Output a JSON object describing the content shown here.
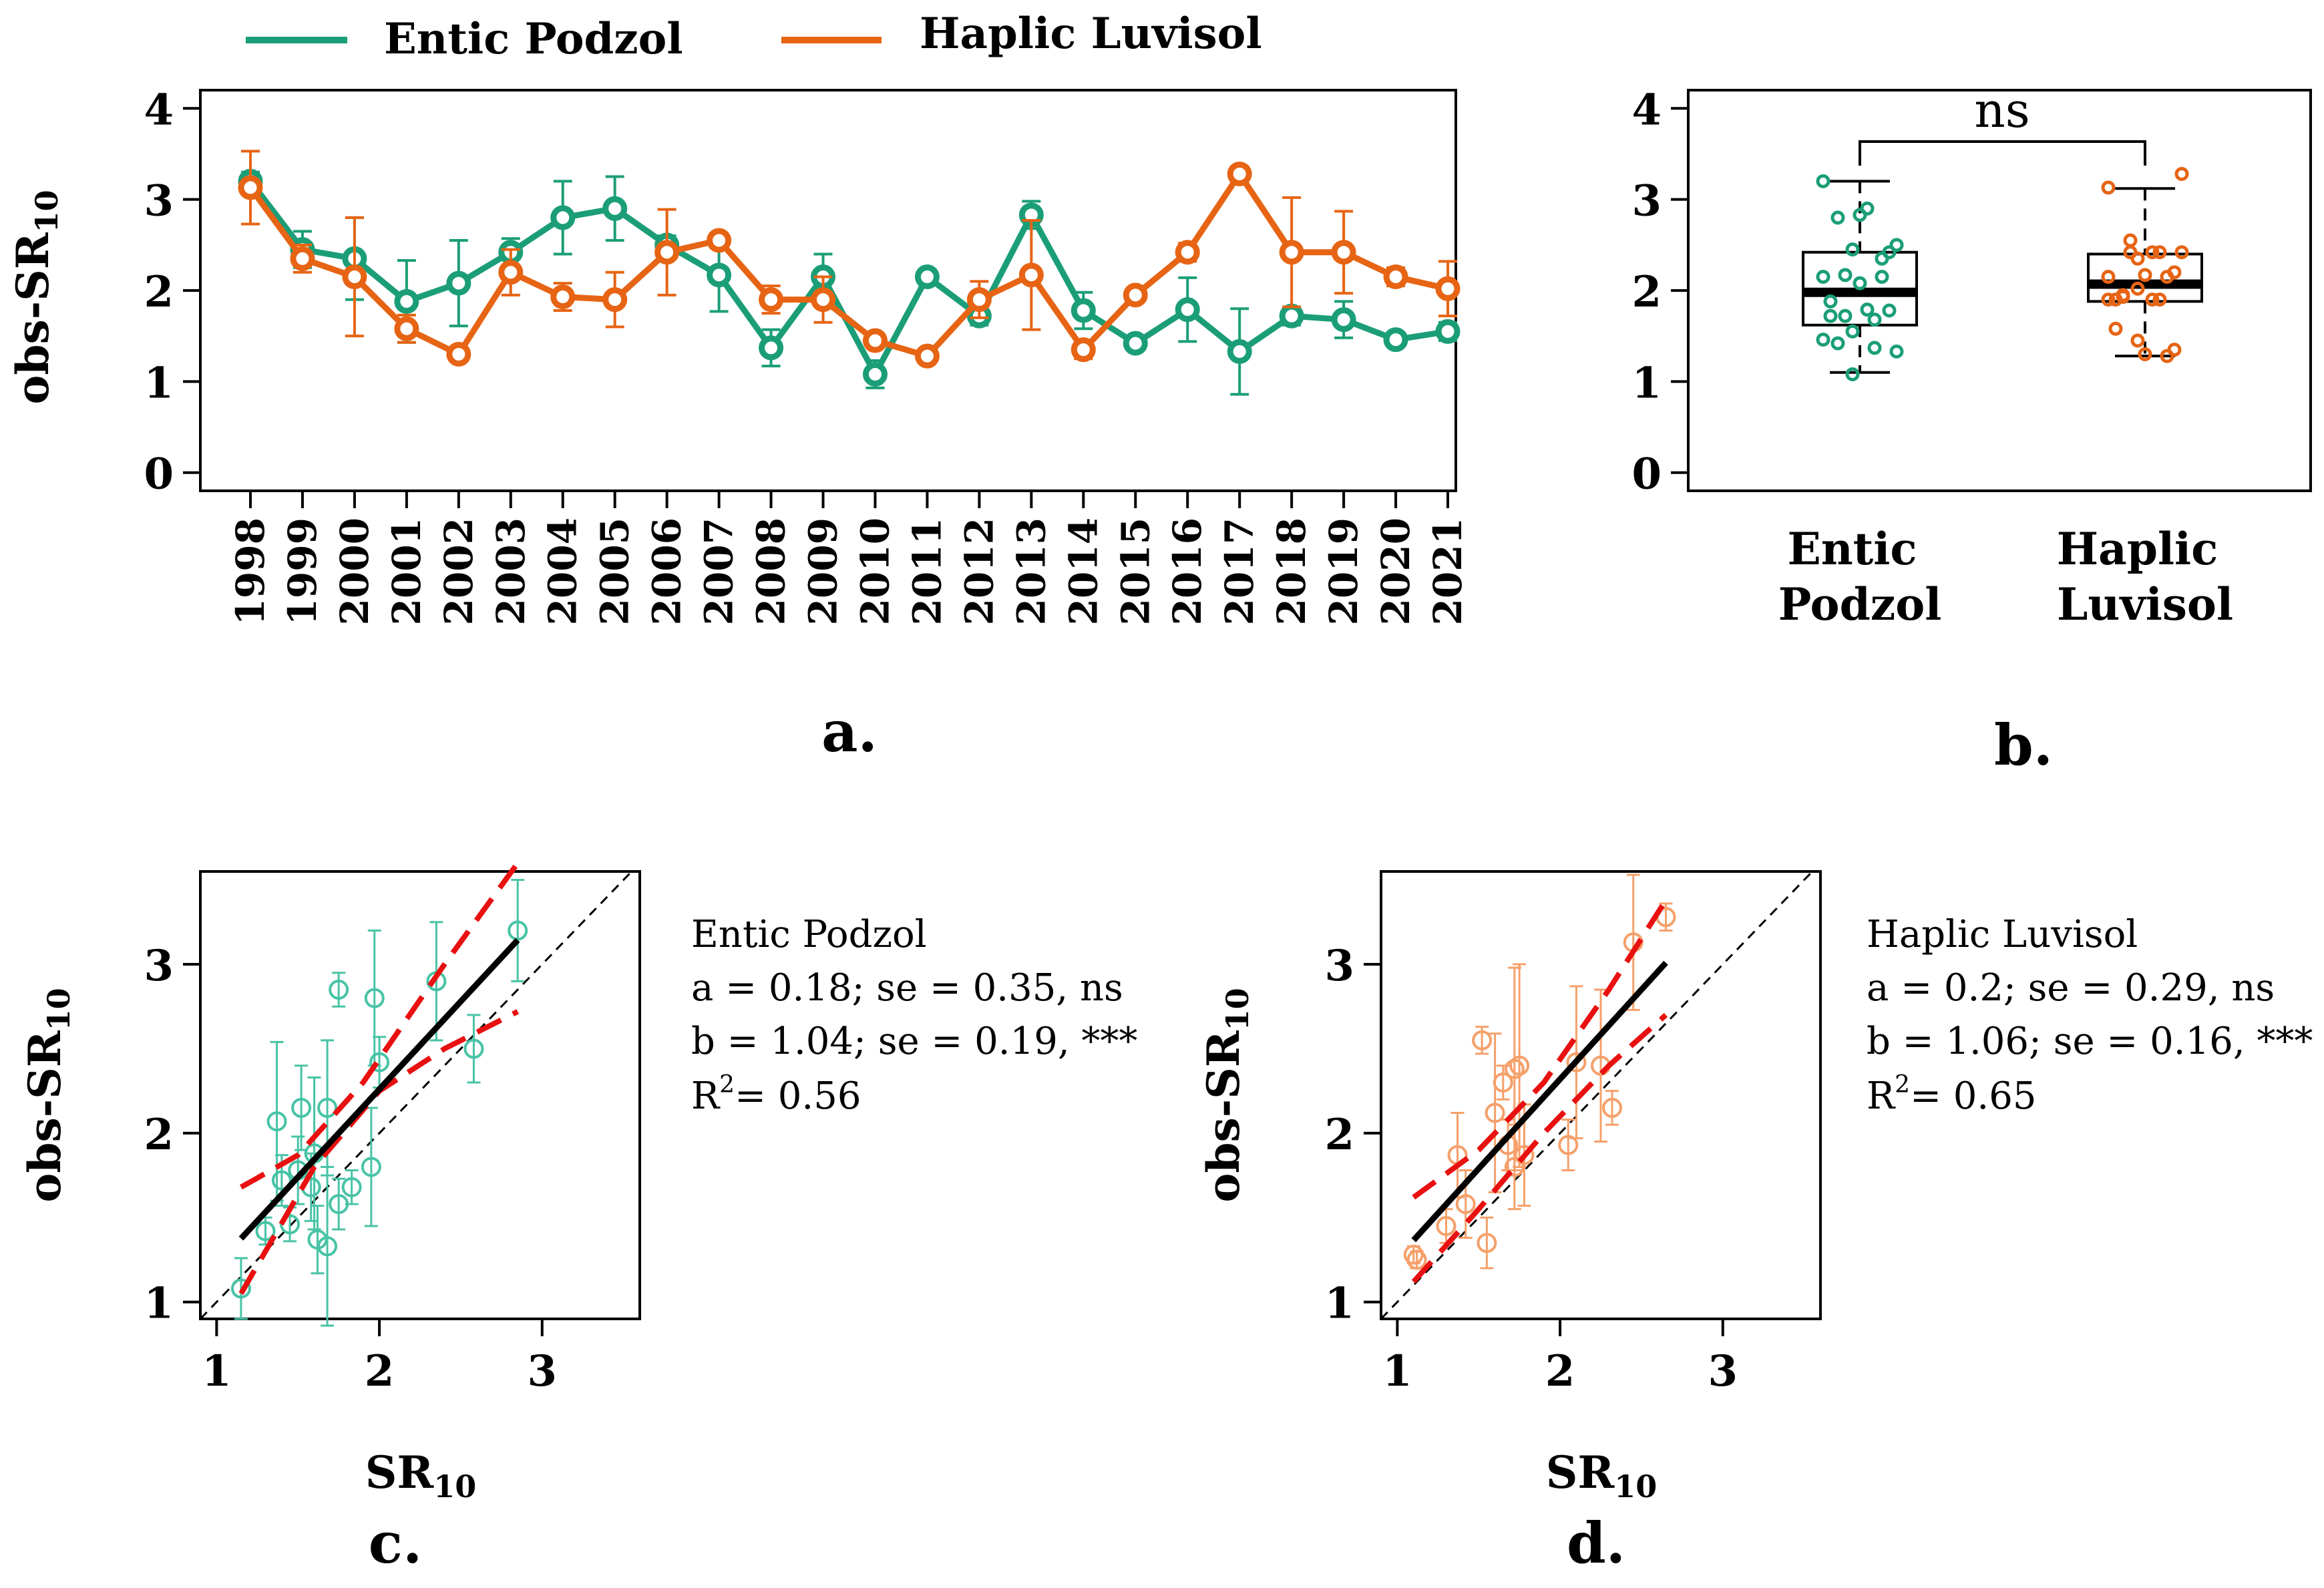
{
  "legend": {
    "items": [
      {
        "label": "Entic Podzol",
        "color": "#1b9e77"
      },
      {
        "label": "Haplic Luvisol",
        "color": "#e66414"
      }
    ]
  },
  "colors": {
    "podzol": "#1b9e77",
    "luvisol": "#e66414",
    "podzol_light": "#48c3a6",
    "luvisol_light": "#f5a06a",
    "fit_line": "#000000",
    "ci_line": "#e81010"
  },
  "panel_labels": {
    "a": "a.",
    "b": "b.",
    "c": "c.",
    "d": "d."
  },
  "chart_data": [
    {
      "id": "a",
      "type": "line",
      "title": "",
      "ylabel_main": "obs-SR",
      "ylabel_sub": "10",
      "xlabel": "",
      "ylim": [
        0,
        4
      ],
      "yticks": [
        "0",
        "1",
        "2",
        "3",
        "4"
      ],
      "x": [
        "1998",
        "1999",
        "2000",
        "2001",
        "2002",
        "2003",
        "2004",
        "2005",
        "2006",
        "2007",
        "2008",
        "2009",
        "2010",
        "2011",
        "2012",
        "2013",
        "2014",
        "2015",
        "2016",
        "2017",
        "2018",
        "2019",
        "2020",
        "2021"
      ],
      "series": [
        {
          "name": "Entic Podzol",
          "values": [
            3.2,
            2.45,
            2.35,
            1.88,
            2.08,
            2.42,
            2.8,
            2.9,
            2.5,
            2.17,
            1.37,
            2.15,
            1.08,
            2.15,
            1.72,
            2.83,
            1.78,
            1.42,
            1.79,
            1.33,
            1.72,
            1.68,
            1.46,
            1.55
          ],
          "err": [
            0.1,
            0.2,
            0.45,
            0.45,
            0.47,
            0.15,
            0.4,
            0.35,
            0.1,
            0.4,
            0.2,
            0.25,
            0.15,
            0.08,
            0.1,
            0.15,
            0.2,
            0.07,
            0.35,
            0.47,
            0.1,
            0.2,
            0.08,
            0.1
          ]
        },
        {
          "name": "Haplic Luvisol",
          "values": [
            3.13,
            2.35,
            2.15,
            1.58,
            1.3,
            2.2,
            1.93,
            1.9,
            2.42,
            2.55,
            1.9,
            1.9,
            1.45,
            1.28,
            1.9,
            2.17,
            1.35,
            1.95,
            2.42,
            3.28,
            2.42,
            2.42,
            2.15,
            2.02
          ],
          "err": [
            0.4,
            0.15,
            0.65,
            0.15,
            0.05,
            0.25,
            0.15,
            0.3,
            0.47,
            0.08,
            0.15,
            0.25,
            0.08,
            0.05,
            0.2,
            0.6,
            0.1,
            0.07,
            0.1,
            0.08,
            0.6,
            0.45,
            0.1,
            0.3
          ]
        }
      ]
    },
    {
      "id": "b",
      "type": "box",
      "ylim": [
        0,
        4
      ],
      "yticks": [
        "0",
        "1",
        "2",
        "3",
        "4"
      ],
      "categories": [
        "Entic\nPodzol",
        "Haplic\nLuvisol"
      ],
      "category_lines": [
        [
          "Entic",
          "Podzol"
        ],
        [
          "Haplic",
          "Luvisol"
        ]
      ],
      "annotation": "ns",
      "boxes": [
        {
          "name": "Entic Podzol",
          "min": 1.1,
          "q1": 1.62,
          "median": 1.98,
          "q3": 2.42,
          "max": 3.2
        },
        {
          "name": "Haplic Luvisol",
          "min": 1.28,
          "q1": 1.88,
          "median": 2.07,
          "q3": 2.4,
          "max": 3.12
        }
      ]
    },
    {
      "id": "c",
      "type": "scatter",
      "title": "Entic Podzol",
      "xlabel_main": "SR",
      "xlabel_sub": "10",
      "ylabel_main": "obs-SR",
      "ylabel_sub": "10",
      "xlim": [
        0.9,
        3.6
      ],
      "ylim": [
        0.9,
        3.55
      ],
      "xticks": [
        "1",
        "2",
        "3"
      ],
      "yticks": [
        "1",
        "2",
        "3"
      ],
      "stats": {
        "a": "a = 0.18; se = 0.35, ns",
        "b": "b = 1.04; se = 0.19, ***",
        "r2_label": "R",
        "r2_sup": "2",
        "r2_value": "= 0.56"
      },
      "fit": {
        "intercept": 0.18,
        "slope": 1.04,
        "x_range": [
          1.15,
          2.85
        ]
      },
      "ci_upper": [
        [
          1.15,
          1.68
        ],
        [
          1.5,
          1.87
        ],
        [
          1.9,
          2.3
        ],
        [
          2.4,
          3.0
        ],
        [
          2.85,
          3.6
        ]
      ],
      "ci_lower": [
        [
          1.15,
          1.05
        ],
        [
          1.6,
          1.8
        ],
        [
          2.0,
          2.25
        ],
        [
          2.4,
          2.5
        ],
        [
          2.85,
          2.72
        ]
      ],
      "points": [
        {
          "x": 1.15,
          "y": 1.08,
          "err": 0.18
        },
        {
          "x": 1.3,
          "y": 1.42,
          "err": 0.08
        },
        {
          "x": 1.37,
          "y": 2.07,
          "err": 0.47
        },
        {
          "x": 1.4,
          "y": 1.72,
          "err": 0.15
        },
        {
          "x": 1.45,
          "y": 1.46,
          "err": 0.1
        },
        {
          "x": 1.5,
          "y": 1.78,
          "err": 0.2
        },
        {
          "x": 1.52,
          "y": 2.15,
          "err": 0.25
        },
        {
          "x": 1.58,
          "y": 1.68,
          "err": 0.2
        },
        {
          "x": 1.6,
          "y": 1.88,
          "err": 0.45
        },
        {
          "x": 1.62,
          "y": 1.37,
          "err": 0.2
        },
        {
          "x": 1.68,
          "y": 1.33,
          "err": 0.47
        },
        {
          "x": 1.68,
          "y": 2.15,
          "err": 0.4
        },
        {
          "x": 1.75,
          "y": 2.85,
          "err": 0.1
        },
        {
          "x": 1.75,
          "y": 1.58,
          "err": 0.15
        },
        {
          "x": 1.83,
          "y": 1.68,
          "err": 0.1
        },
        {
          "x": 1.95,
          "y": 1.8,
          "err": 0.35
        },
        {
          "x": 1.97,
          "y": 2.8,
          "err": 0.4
        },
        {
          "x": 2.0,
          "y": 2.42,
          "err": 0.15
        },
        {
          "x": 2.35,
          "y": 2.9,
          "err": 0.35
        },
        {
          "x": 2.58,
          "y": 2.5,
          "err": 0.2
        },
        {
          "x": 2.85,
          "y": 3.2,
          "err": 0.3
        }
      ]
    },
    {
      "id": "d",
      "type": "scatter",
      "title": "Haplic Luvisol",
      "xlabel_main": "SR",
      "xlabel_sub": "10",
      "ylabel_main": "obs-SR",
      "ylabel_sub": "10",
      "xlim": [
        0.9,
        3.6
      ],
      "ylim": [
        0.9,
        3.55
      ],
      "xticks": [
        "1",
        "2",
        "3"
      ],
      "yticks": [
        "1",
        "2",
        "3"
      ],
      "stats": {
        "a": "a = 0.2; se = 0.29, ns",
        "b": "b = 1.06; se = 0.16, ***",
        "r2_label": "R",
        "r2_sup": "2",
        "r2_value": "= 0.65"
      },
      "fit": {
        "intercept": 0.2,
        "slope": 1.06,
        "x_range": [
          1.1,
          2.65
        ]
      },
      "ci_upper": [
        [
          1.1,
          1.62
        ],
        [
          1.5,
          1.9
        ],
        [
          1.9,
          2.3
        ],
        [
          2.3,
          2.85
        ],
        [
          2.65,
          3.38
        ]
      ],
      "ci_lower": [
        [
          1.1,
          1.12
        ],
        [
          1.5,
          1.55
        ],
        [
          1.9,
          2.0
        ],
        [
          2.3,
          2.4
        ],
        [
          2.65,
          2.7
        ]
      ],
      "points": [
        {
          "x": 1.1,
          "y": 1.28,
          "err": 0.05
        },
        {
          "x": 1.12,
          "y": 1.25,
          "err": 0.05
        },
        {
          "x": 1.3,
          "y": 1.45,
          "err": 0.1
        },
        {
          "x": 1.37,
          "y": 1.87,
          "err": 0.25
        },
        {
          "x": 1.42,
          "y": 1.58,
          "err": 0.2
        },
        {
          "x": 1.52,
          "y": 2.55,
          "err": 0.08
        },
        {
          "x": 1.55,
          "y": 1.35,
          "err": 0.15
        },
        {
          "x": 1.6,
          "y": 2.12,
          "err": 0.47
        },
        {
          "x": 1.65,
          "y": 2.3,
          "err": 0.1
        },
        {
          "x": 1.68,
          "y": 1.93,
          "err": 0.15
        },
        {
          "x": 1.72,
          "y": 2.38,
          "err": 0.6
        },
        {
          "x": 1.72,
          "y": 1.8,
          "err": 0.25
        },
        {
          "x": 1.75,
          "y": 2.4,
          "err": 0.6
        },
        {
          "x": 1.78,
          "y": 1.87,
          "err": 0.3
        },
        {
          "x": 2.05,
          "y": 1.93,
          "err": 0.15
        },
        {
          "x": 2.1,
          "y": 2.42,
          "err": 0.45
        },
        {
          "x": 2.25,
          "y": 2.4,
          "err": 0.45
        },
        {
          "x": 2.32,
          "y": 2.15,
          "err": 0.1
        },
        {
          "x": 2.45,
          "y": 3.13,
          "err": 0.4
        },
        {
          "x": 2.65,
          "y": 3.28,
          "err": 0.08
        }
      ]
    }
  ]
}
